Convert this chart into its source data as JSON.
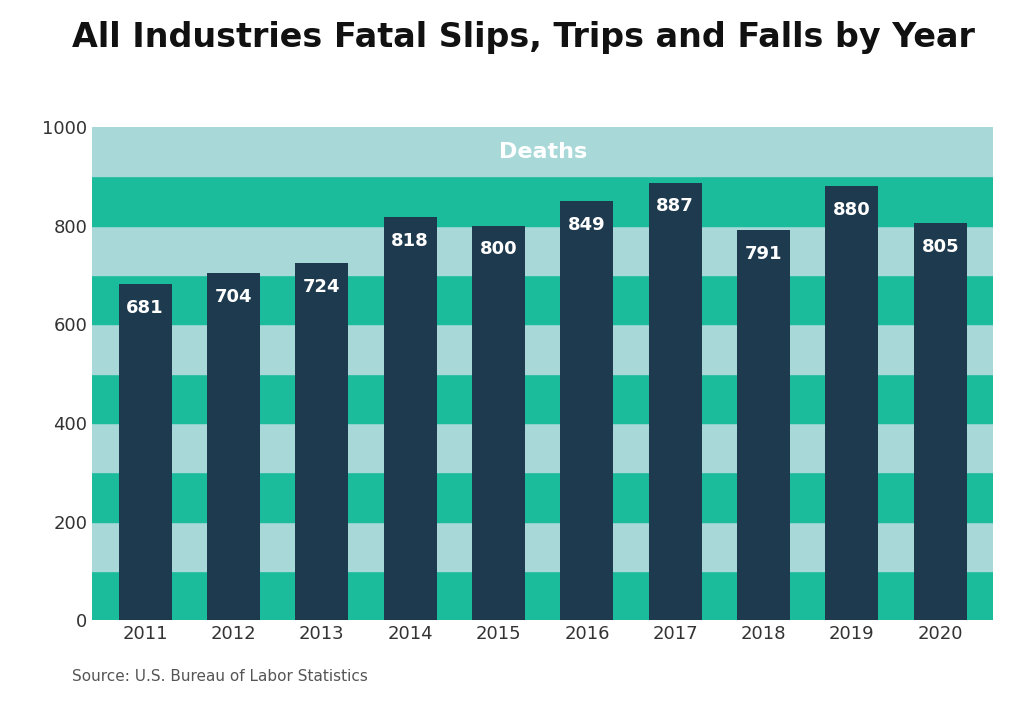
{
  "title": "All Industries Fatal Slips, Trips and Falls by Year",
  "years": [
    2011,
    2012,
    2013,
    2014,
    2015,
    2016,
    2017,
    2018,
    2019,
    2020
  ],
  "values": [
    681,
    704,
    724,
    818,
    800,
    849,
    887,
    791,
    880,
    805
  ],
  "bar_color": "#1e3a4f",
  "ylabel_text": "Deaths",
  "source_text": "Source: U.S. Bureau of Labor Statistics",
  "ylim": [
    0,
    1000
  ],
  "yticks": [
    0,
    200,
    400,
    600,
    800,
    1000
  ],
  "bg_color_outer": "#ffffff",
  "plot_bg_stripes": [
    {
      "ymin": 0,
      "ymax": 100,
      "color": "#1abc9c"
    },
    {
      "ymin": 100,
      "ymax": 200,
      "color": "#a8d8d8"
    },
    {
      "ymin": 200,
      "ymax": 300,
      "color": "#1abc9c"
    },
    {
      "ymin": 300,
      "ymax": 400,
      "color": "#a8d8d8"
    },
    {
      "ymin": 400,
      "ymax": 500,
      "color": "#1abc9c"
    },
    {
      "ymin": 500,
      "ymax": 600,
      "color": "#a8d8d8"
    },
    {
      "ymin": 600,
      "ymax": 700,
      "color": "#1abc9c"
    },
    {
      "ymin": 700,
      "ymax": 800,
      "color": "#a8d8d8"
    },
    {
      "ymin": 800,
      "ymax": 900,
      "color": "#1abc9c"
    },
    {
      "ymin": 900,
      "ymax": 1000,
      "color": "#a8d8d8"
    }
  ],
  "title_fontsize": 24,
  "label_fontsize": 13,
  "tick_fontsize": 13,
  "bar_label_fontsize": 13,
  "deaths_label_fontsize": 16,
  "deaths_label_color": "#ffffff",
  "title_color": "#111111",
  "tick_color": "#333333",
  "source_fontsize": 11
}
